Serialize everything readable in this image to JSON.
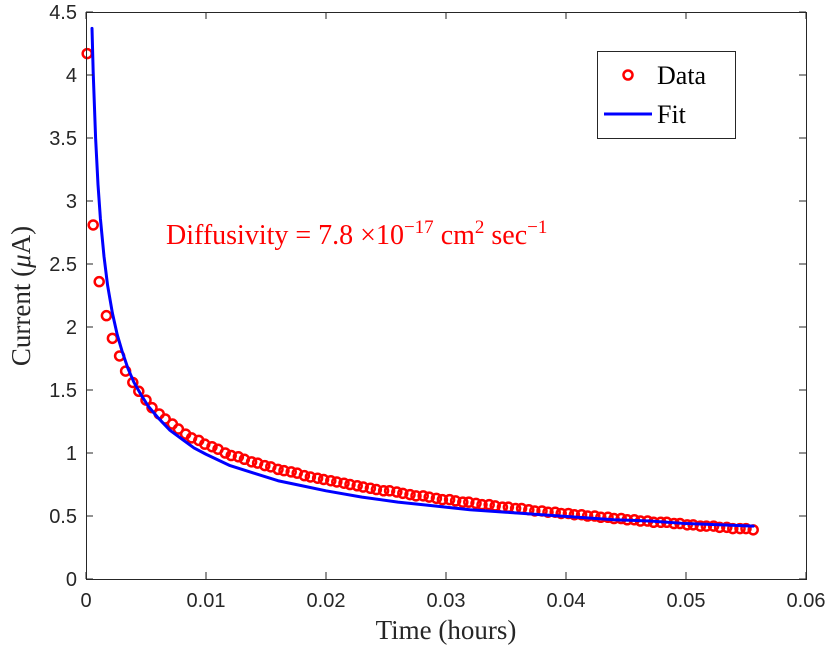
{
  "chart_data": {
    "type": "scatter",
    "title": "",
    "xlabel": "Time (hours)",
    "ylabel_prefix": "Current (",
    "ylabel_mu": "μ",
    "ylabel_suffix": "A)",
    "xlim": [
      0,
      0.06
    ],
    "ylim": [
      0,
      4.5
    ],
    "x_ticks": [
      0,
      0.01,
      0.02,
      0.03,
      0.04,
      0.05,
      0.06
    ],
    "x_tick_labels": [
      "0",
      "0.01",
      "0.02",
      "0.03",
      "0.04",
      "0.05",
      "0.06"
    ],
    "y_ticks": [
      0,
      0.5,
      1,
      1.5,
      2,
      2.5,
      3,
      3.5,
      4,
      4.5
    ],
    "y_tick_labels": [
      "0",
      "0.5",
      "1",
      "1.5",
      "2",
      "2.5",
      "3",
      "3.5",
      "4",
      "4.5"
    ],
    "grid": false,
    "legend_position": "top-right",
    "series": [
      {
        "name": "Data",
        "kind": "markers",
        "color": "#ff0000",
        "x": [
          0.0001,
          0.0006,
          0.0011,
          0.0017,
          0.0022,
          0.0028,
          0.0033,
          0.0039,
          0.0044,
          0.005,
          0.0055,
          0.0061,
          0.0066,
          0.0072,
          0.0077,
          0.0083,
          0.0088,
          0.0094,
          0.0099,
          0.0105,
          0.011,
          0.0116,
          0.0121,
          0.0127,
          0.0132,
          0.0138,
          0.0143,
          0.0149,
          0.0154,
          0.016,
          0.0165,
          0.0171,
          0.0176,
          0.0182,
          0.0187,
          0.0193,
          0.0198,
          0.0204,
          0.0209,
          0.0215,
          0.022,
          0.0226,
          0.0231,
          0.0237,
          0.0242,
          0.0248,
          0.0253,
          0.0259,
          0.0264,
          0.027,
          0.0275,
          0.0281,
          0.0286,
          0.0292,
          0.0297,
          0.0303,
          0.0308,
          0.0314,
          0.0319,
          0.0325,
          0.033,
          0.0336,
          0.0341,
          0.0347,
          0.0352,
          0.0358,
          0.0363,
          0.0369,
          0.0374,
          0.038,
          0.0385,
          0.0391,
          0.0396,
          0.0402,
          0.0407,
          0.0413,
          0.0418,
          0.0424,
          0.0429,
          0.0435,
          0.044,
          0.0446,
          0.0451,
          0.0457,
          0.0462,
          0.0468,
          0.0473,
          0.0479,
          0.0484,
          0.049,
          0.0495,
          0.0501,
          0.0506,
          0.0512,
          0.0517,
          0.0523,
          0.0528,
          0.0534,
          0.0539,
          0.0545,
          0.055,
          0.0556
        ],
        "y": [
          4.17,
          2.81,
          2.36,
          2.09,
          1.91,
          1.77,
          1.65,
          1.56,
          1.49,
          1.42,
          1.36,
          1.31,
          1.27,
          1.23,
          1.19,
          1.15,
          1.12,
          1.1,
          1.07,
          1.05,
          1.03,
          1.0,
          0.98,
          0.97,
          0.95,
          0.93,
          0.92,
          0.9,
          0.89,
          0.87,
          0.86,
          0.85,
          0.84,
          0.82,
          0.81,
          0.8,
          0.79,
          0.78,
          0.77,
          0.76,
          0.75,
          0.74,
          0.73,
          0.72,
          0.71,
          0.7,
          0.7,
          0.69,
          0.68,
          0.67,
          0.66,
          0.66,
          0.65,
          0.64,
          0.63,
          0.63,
          0.62,
          0.61,
          0.61,
          0.6,
          0.59,
          0.59,
          0.58,
          0.57,
          0.57,
          0.56,
          0.56,
          0.55,
          0.54,
          0.54,
          0.53,
          0.53,
          0.52,
          0.52,
          0.51,
          0.51,
          0.5,
          0.5,
          0.49,
          0.49,
          0.48,
          0.48,
          0.47,
          0.47,
          0.46,
          0.46,
          0.45,
          0.45,
          0.45,
          0.44,
          0.44,
          0.43,
          0.43,
          0.42,
          0.42,
          0.42,
          0.41,
          0.41,
          0.4,
          0.4,
          0.4,
          0.39
        ]
      },
      {
        "name": "Fit",
        "kind": "line",
        "color": "#0000ff",
        "x": [
          0.0005,
          0.0006,
          0.0008,
          0.001,
          0.0012,
          0.0015,
          0.0018,
          0.0022,
          0.0026,
          0.003,
          0.0035,
          0.004,
          0.0046,
          0.0052,
          0.006,
          0.007,
          0.008,
          0.009,
          0.01,
          0.012,
          0.014,
          0.016,
          0.018,
          0.02,
          0.023,
          0.026,
          0.029,
          0.032,
          0.035,
          0.038,
          0.041,
          0.044,
          0.047,
          0.05,
          0.053,
          0.0556
        ],
        "y": [
          4.37,
          4.02,
          3.5,
          3.13,
          2.86,
          2.56,
          2.33,
          2.11,
          1.94,
          1.81,
          1.67,
          1.56,
          1.46,
          1.37,
          1.28,
          1.18,
          1.11,
          1.04,
          0.99,
          0.9,
          0.84,
          0.78,
          0.74,
          0.7,
          0.65,
          0.61,
          0.58,
          0.55,
          0.53,
          0.51,
          0.49,
          0.47,
          0.46,
          0.44,
          0.43,
          0.42
        ]
      }
    ],
    "annotation": {
      "prefix": "Diffusivity = 7.8 ×10",
      "exp1": "−17",
      "mid": " cm",
      "exp2": "2",
      "tail": " sec",
      "exp3": "−1",
      "color": "#ff0000"
    }
  }
}
